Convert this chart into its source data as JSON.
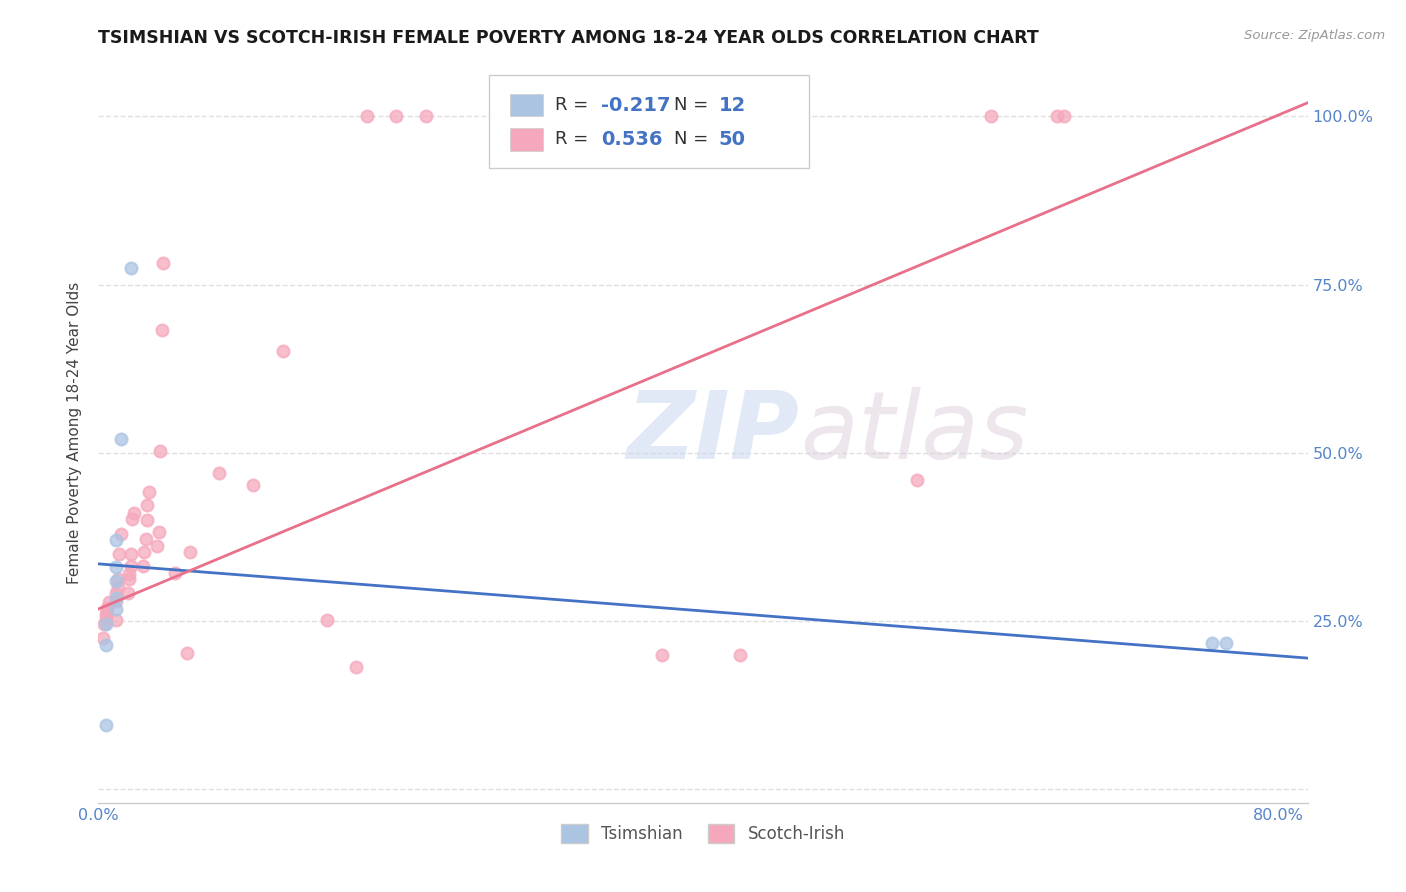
{
  "title": "TSIMSHIAN VS SCOTCH-IRISH FEMALE POVERTY AMONG 18-24 YEAR OLDS CORRELATION CHART",
  "source": "Source: ZipAtlas.com",
  "ylabel": "Female Poverty Among 18-24 Year Olds",
  "xlim": [
    0.0,
    0.82
  ],
  "ylim": [
    -0.02,
    1.08
  ],
  "xticks": [
    0.0,
    0.1,
    0.2,
    0.3,
    0.4,
    0.5,
    0.6,
    0.7,
    0.8
  ],
  "xticklabels": [
    "0.0%",
    "",
    "",
    "",
    "",
    "",
    "",
    "",
    "80.0%"
  ],
  "yticks": [
    0.0,
    0.25,
    0.5,
    0.75,
    1.0
  ],
  "yticklabels": [
    "",
    "25.0%",
    "50.0%",
    "75.0%",
    "100.0%"
  ],
  "watermark_zip": "ZIP",
  "watermark_atlas": "atlas",
  "tsimshian_color": "#aac4e2",
  "scotch_irish_color": "#f5a8bc",
  "tsimshian_line_color": "#4472c4",
  "scotch_irish_line_color": "#e8708a",
  "r_tsimshian": "-0.217",
  "n_tsimshian": "12",
  "r_scotch_irish": "0.536",
  "n_scotch_irish": "50",
  "tsimshian_x": [
    0.005,
    0.005,
    0.005,
    0.012,
    0.012,
    0.012,
    0.012,
    0.012,
    0.015,
    0.022,
    0.755,
    0.765
  ],
  "tsimshian_y": [
    0.095,
    0.215,
    0.245,
    0.268,
    0.285,
    0.31,
    0.33,
    0.37,
    0.52,
    0.775,
    0.218,
    0.218
  ],
  "scotch_irish_x": [
    0.003,
    0.004,
    0.005,
    0.005,
    0.006,
    0.006,
    0.007,
    0.012,
    0.012,
    0.012,
    0.013,
    0.013,
    0.014,
    0.015,
    0.02,
    0.021,
    0.021,
    0.022,
    0.022,
    0.023,
    0.024,
    0.03,
    0.031,
    0.032,
    0.033,
    0.033,
    0.034,
    0.04,
    0.041,
    0.042,
    0.043,
    0.044,
    0.052,
    0.06,
    0.062,
    0.082,
    0.105,
    0.125,
    0.155,
    0.175,
    0.182,
    0.202,
    0.222,
    0.282,
    0.382,
    0.435,
    0.555,
    0.605,
    0.65,
    0.655
  ],
  "scotch_irish_y": [
    0.225,
    0.245,
    0.255,
    0.26,
    0.265,
    0.27,
    0.278,
    0.252,
    0.28,
    0.292,
    0.3,
    0.312,
    0.35,
    0.38,
    0.292,
    0.312,
    0.32,
    0.332,
    0.35,
    0.402,
    0.41,
    0.332,
    0.352,
    0.372,
    0.4,
    0.422,
    0.442,
    0.362,
    0.382,
    0.502,
    0.682,
    0.782,
    0.322,
    0.202,
    0.352,
    0.47,
    0.452,
    0.652,
    0.252,
    0.182,
    1.0,
    1.0,
    1.0,
    1.0,
    0.2,
    0.2,
    0.46,
    1.0,
    1.0,
    1.0
  ],
  "background_color": "#ffffff",
  "grid_color": "#e0e0e0",
  "tick_color": "#5585c8",
  "marker_size": 75,
  "title_fontsize": 12.5,
  "tick_fontsize": 11.5
}
